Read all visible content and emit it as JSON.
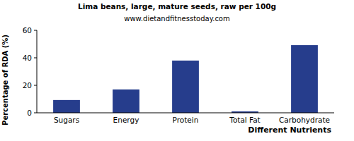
{
  "chart_data": {
    "type": "bar",
    "title": "Lima beans, large, mature seeds, raw per 100g",
    "subtitle": "www.dietandfitnesstoday.com",
    "x_label": "Different Nutrients",
    "y_label": "Percentage of RDA (%)",
    "categories": [
      "Sugars",
      "Energy",
      "Protein",
      "Total Fat",
      "Carbohydrate"
    ],
    "values": [
      9.3,
      17,
      38,
      1,
      49.2
    ],
    "color": "#263d8c",
    "ylim": [
      0,
      60
    ],
    "yticks": [
      0,
      20,
      40,
      60
    ],
    "grid": false
  }
}
